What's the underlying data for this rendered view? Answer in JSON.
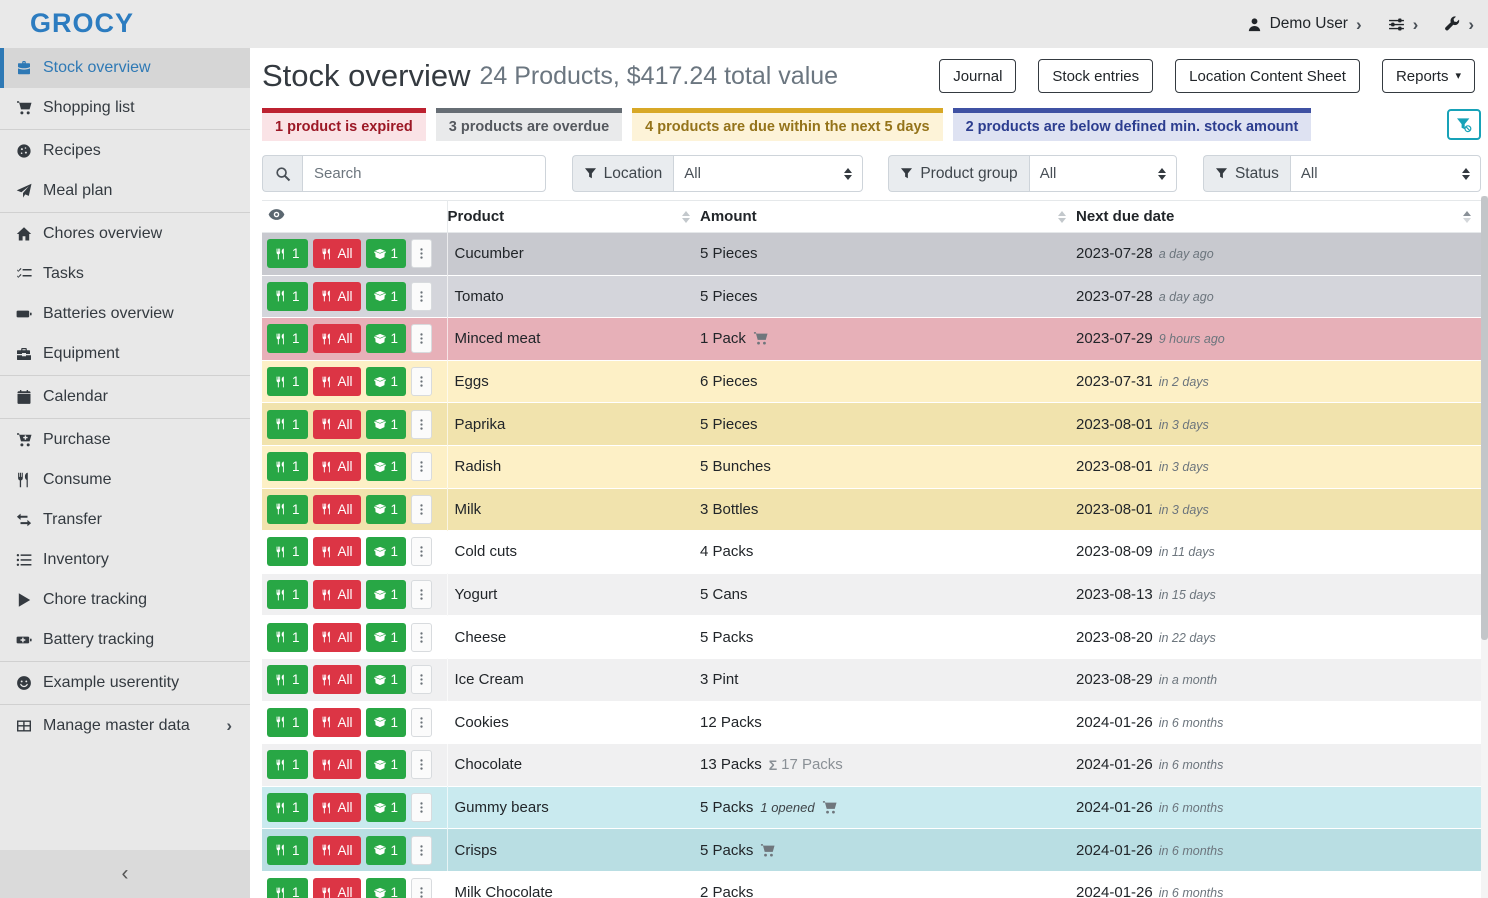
{
  "app": {
    "logo": "GROCY"
  },
  "topbar": {
    "user": {
      "label": "Demo User"
    },
    "chevron": "›"
  },
  "sidebar": {
    "items": [
      {
        "label": "Stock overview",
        "icon": "briefcase",
        "active": true
      },
      {
        "label": "Shopping list",
        "icon": "cart",
        "divider_after": true
      },
      {
        "label": "Recipes",
        "icon": "cookie"
      },
      {
        "label": "Meal plan",
        "icon": "paper-plane",
        "divider_after": true
      },
      {
        "label": "Chores overview",
        "icon": "home"
      },
      {
        "label": "Tasks",
        "icon": "list-check"
      },
      {
        "label": "Batteries overview",
        "icon": "battery"
      },
      {
        "label": "Equipment",
        "icon": "toolbox",
        "divider_after": true
      },
      {
        "label": "Calendar",
        "icon": "calendar",
        "divider_after": true
      },
      {
        "label": "Purchase",
        "icon": "cart-plus"
      },
      {
        "label": "Consume",
        "icon": "utensils"
      },
      {
        "label": "Transfer",
        "icon": "exchange"
      },
      {
        "label": "Inventory",
        "icon": "list"
      },
      {
        "label": "Chore tracking",
        "icon": "play"
      },
      {
        "label": "Battery tracking",
        "icon": "battery-plus",
        "divider_after": true
      },
      {
        "label": "Example userentity",
        "icon": "smiley",
        "divider_after": true
      },
      {
        "label": "Manage master data",
        "icon": "table",
        "chevron": "›"
      }
    ],
    "collapse_icon": "‹"
  },
  "page": {
    "title": "Stock overview",
    "subtitle": "24 Products, $417.24 total value",
    "actions": [
      "Journal",
      "Stock entries",
      "Location Content Sheet"
    ],
    "reports_button": {
      "label": "Reports",
      "caret": "▾"
    }
  },
  "alerts": [
    {
      "text": "1 product is expired",
      "type": "expired"
    },
    {
      "text": "3 products are overdue",
      "type": "overdue"
    },
    {
      "text": "4 products are due within the next 5 days",
      "type": "duesoon"
    },
    {
      "text": "2 products are below defined min. stock amount",
      "type": "belowmin"
    }
  ],
  "filters": {
    "search_placeholder": "Search",
    "groups": [
      {
        "label": "Location",
        "value": "All"
      },
      {
        "label": "Product group",
        "value": "All"
      },
      {
        "label": "Status",
        "value": "All"
      }
    ]
  },
  "table": {
    "columns": {
      "product": "Product",
      "amount": "Amount",
      "due": "Next due date"
    },
    "row_buttons": {
      "consume_one": "1",
      "consume_all": "All",
      "open_one": "1"
    },
    "rows": [
      {
        "product": "Cucumber",
        "amount": "5 Pieces",
        "date": "2023-07-28",
        "due": "a day ago",
        "status": "overdue"
      },
      {
        "product": "Tomato",
        "amount": "5 Pieces",
        "date": "2023-07-28",
        "due": "a day ago",
        "status": "overdue"
      },
      {
        "product": "Minced meat",
        "amount": "1 Pack",
        "cart": true,
        "date": "2023-07-29",
        "due": "9 hours ago",
        "status": "expired"
      },
      {
        "product": "Eggs",
        "amount": "6 Pieces",
        "date": "2023-07-31",
        "due": "in 2 days",
        "status": "duesoon"
      },
      {
        "product": "Paprika",
        "amount": "5 Pieces",
        "date": "2023-08-01",
        "due": "in 3 days",
        "status": "duesoon"
      },
      {
        "product": "Radish",
        "amount": "5 Bunches",
        "date": "2023-08-01",
        "due": "in 3 days",
        "status": "duesoon"
      },
      {
        "product": "Milk",
        "amount": "3 Bottles",
        "date": "2023-08-01",
        "due": "in 3 days",
        "status": "duesoon"
      },
      {
        "product": "Cold cuts",
        "amount": "4 Packs",
        "date": "2023-08-09",
        "due": "in 11 days",
        "status": "none"
      },
      {
        "product": "Yogurt",
        "amount": "5 Cans",
        "date": "2023-08-13",
        "due": "in 15 days",
        "status": "none"
      },
      {
        "product": "Cheese",
        "amount": "5 Packs",
        "date": "2023-08-20",
        "due": "in 22 days",
        "status": "none"
      },
      {
        "product": "Ice Cream",
        "amount": "3 Pint",
        "date": "2023-08-29",
        "due": "in a month",
        "status": "none"
      },
      {
        "product": "Cookies",
        "amount": "12 Packs",
        "date": "2024-01-26",
        "due": "in 6 months",
        "status": "none"
      },
      {
        "product": "Chocolate",
        "amount": "13 Packs",
        "aggregate": "17 Packs",
        "date": "2024-01-26",
        "due": "in 6 months",
        "status": "none"
      },
      {
        "product": "Gummy bears",
        "amount": "5 Packs",
        "opened": "1 opened",
        "cart": true,
        "date": "2024-01-26",
        "due": "in 6 months",
        "status": "belowmin"
      },
      {
        "product": "Crisps",
        "amount": "5 Packs",
        "cart": true,
        "date": "2024-01-26",
        "due": "in 6 months",
        "status": "belowmin"
      },
      {
        "product": "Milk Chocolate",
        "amount": "2 Packs",
        "date": "2024-01-26",
        "due": "in 6 months",
        "status": "none"
      }
    ]
  },
  "colors": {
    "accent_blue": "#2e79b5",
    "success_green": "#28a745",
    "danger_red": "#dc3545",
    "info_teal": "#17a2b8",
    "expired_row": "#e7b0b8",
    "overdue_row": "#c8c9cf",
    "duesoon_row": "#f1e3ad",
    "belowmin_row": "#b9dee3"
  }
}
